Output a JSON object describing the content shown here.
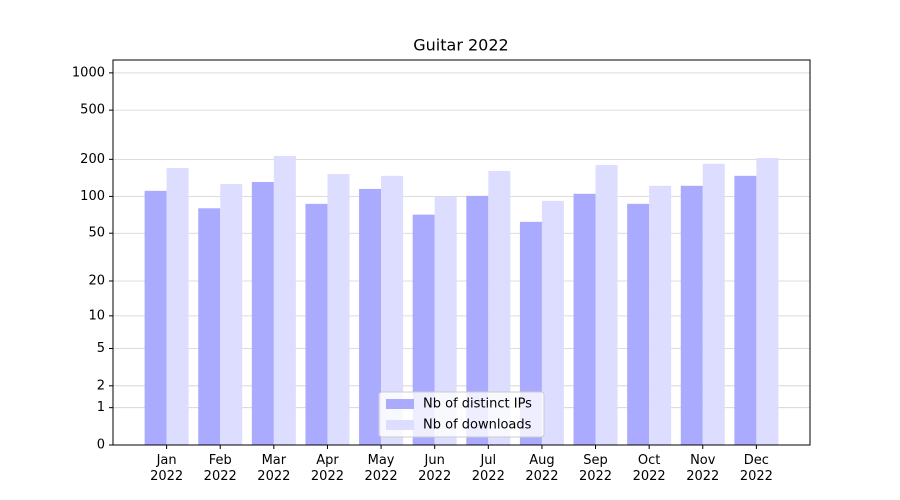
{
  "chart_data": {
    "type": "bar",
    "title": "Guitar 2022",
    "categories": [
      "Jan 2022",
      "Feb 2022",
      "Mar 2022",
      "Apr 2022",
      "May 2022",
      "Jun 2022",
      "Jul 2022",
      "Aug 2022",
      "Sep 2022",
      "Oct 2022",
      "Nov 2022",
      "Dec 2022"
    ],
    "series": [
      {
        "name": "Nb of distinct IPs",
        "color": "#aaaaff",
        "values": [
          111,
          80,
          131,
          87,
          115,
          71,
          101,
          62,
          105,
          87,
          122,
          147
        ]
      },
      {
        "name": "Nb of downloads",
        "color": "#ddddff",
        "values": [
          170,
          126,
          213,
          152,
          147,
          100,
          161,
          92,
          180,
          122,
          184,
          205
        ]
      }
    ],
    "yscale": "log1p",
    "ylim": [
      0,
      1270
    ],
    "yticks": [
      0,
      1,
      2,
      5,
      10,
      20,
      50,
      100,
      200,
      500,
      1000
    ],
    "grid": true,
    "legend": "lower center"
  }
}
